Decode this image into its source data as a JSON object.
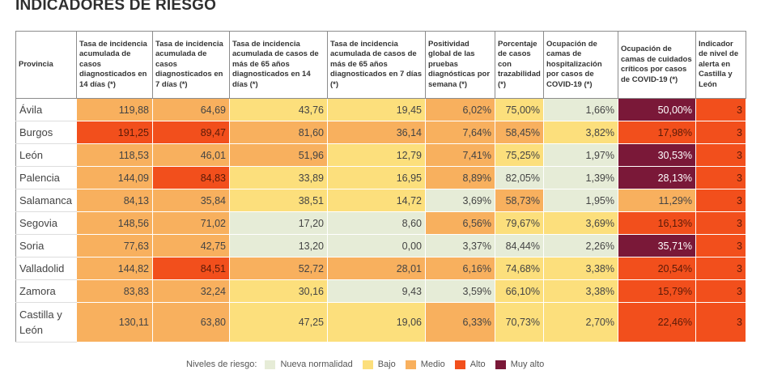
{
  "title": "INDICADORES DE RIESGO",
  "headers": [
    "Provincia",
    "Tasa de incidencia acumulada de casos diagnosticados en 14 días (*)",
    "Tasa de incidencia acumulada de casos diagnosticados en 7 días (*)",
    "Tasa de incidencia acumulada de casos de más de 65 años diagnosticados en 14 días (*)",
    "Tasa de incidencia acumulada de casos de más de 65 años diagnosticados en 7 días (*)",
    "Positividad global de las pruebas diagnósticas por semana (*)",
    "Porcentaje de casos con trazabilidad (*)",
    "Ocupación de camas de hospitalización por casos de COVID-19 (*)",
    "Ocupación de camas de cuidados críticos por casos de COVID-19 (*)",
    "Indicador de nivel de alerta en Castilla y León"
  ],
  "rows": [
    {
      "provincia": "Ávila",
      "cells": [
        {
          "v": "119,88",
          "l": "medio"
        },
        {
          "v": "64,69",
          "l": "medio"
        },
        {
          "v": "43,76",
          "l": "bajo"
        },
        {
          "v": "19,45",
          "l": "bajo"
        },
        {
          "v": "6,02%",
          "l": "medio"
        },
        {
          "v": "75,00%",
          "l": "bajo"
        },
        {
          "v": "1,66%",
          "l": "normal"
        },
        {
          "v": "50,00%",
          "l": "muyalto"
        },
        {
          "v": "3",
          "l": "alto"
        }
      ]
    },
    {
      "provincia": "Burgos",
      "cells": [
        {
          "v": "191,25",
          "l": "alto"
        },
        {
          "v": "89,47",
          "l": "alto"
        },
        {
          "v": "81,60",
          "l": "medio"
        },
        {
          "v": "36,14",
          "l": "medio"
        },
        {
          "v": "7,64%",
          "l": "medio"
        },
        {
          "v": "58,45%",
          "l": "medio"
        },
        {
          "v": "3,82%",
          "l": "bajo"
        },
        {
          "v": "17,98%",
          "l": "alto"
        },
        {
          "v": "3",
          "l": "alto"
        }
      ]
    },
    {
      "provincia": "León",
      "cells": [
        {
          "v": "118,53",
          "l": "medio"
        },
        {
          "v": "46,01",
          "l": "medio"
        },
        {
          "v": "51,96",
          "l": "medio"
        },
        {
          "v": "12,79",
          "l": "bajo"
        },
        {
          "v": "7,41%",
          "l": "medio"
        },
        {
          "v": "75,25%",
          "l": "bajo"
        },
        {
          "v": "1,97%",
          "l": "normal"
        },
        {
          "v": "30,53%",
          "l": "muyalto"
        },
        {
          "v": "3",
          "l": "alto"
        }
      ]
    },
    {
      "provincia": "Palencia",
      "cells": [
        {
          "v": "144,09",
          "l": "medio"
        },
        {
          "v": "84,83",
          "l": "alto"
        },
        {
          "v": "33,89",
          "l": "bajo"
        },
        {
          "v": "16,95",
          "l": "bajo"
        },
        {
          "v": "8,89%",
          "l": "medio"
        },
        {
          "v": "82,05%",
          "l": "normal"
        },
        {
          "v": "1,39%",
          "l": "normal"
        },
        {
          "v": "28,13%",
          "l": "muyalto"
        },
        {
          "v": "3",
          "l": "alto"
        }
      ]
    },
    {
      "provincia": "Salamanca",
      "cells": [
        {
          "v": "84,13",
          "l": "medio"
        },
        {
          "v": "35,84",
          "l": "medio"
        },
        {
          "v": "38,51",
          "l": "bajo"
        },
        {
          "v": "14,72",
          "l": "bajo"
        },
        {
          "v": "3,69%",
          "l": "normal"
        },
        {
          "v": "58,73%",
          "l": "medio"
        },
        {
          "v": "1,95%",
          "l": "normal"
        },
        {
          "v": "11,29%",
          "l": "medio"
        },
        {
          "v": "3",
          "l": "alto"
        }
      ]
    },
    {
      "provincia": "Segovia",
      "cells": [
        {
          "v": "148,56",
          "l": "medio"
        },
        {
          "v": "71,02",
          "l": "medio"
        },
        {
          "v": "17,20",
          "l": "normal"
        },
        {
          "v": "8,60",
          "l": "normal"
        },
        {
          "v": "6,56%",
          "l": "medio"
        },
        {
          "v": "79,67%",
          "l": "bajo"
        },
        {
          "v": "3,69%",
          "l": "bajo"
        },
        {
          "v": "16,13%",
          "l": "alto"
        },
        {
          "v": "3",
          "l": "alto"
        }
      ]
    },
    {
      "provincia": "Soria",
      "cells": [
        {
          "v": "77,63",
          "l": "medio"
        },
        {
          "v": "42,75",
          "l": "medio"
        },
        {
          "v": "13,20",
          "l": "normal"
        },
        {
          "v": "0,00",
          "l": "normal"
        },
        {
          "v": "3,37%",
          "l": "normal"
        },
        {
          "v": "84,44%",
          "l": "normal"
        },
        {
          "v": "2,26%",
          "l": "normal"
        },
        {
          "v": "35,71%",
          "l": "muyalto"
        },
        {
          "v": "3",
          "l": "alto"
        }
      ]
    },
    {
      "provincia": "Valladolid",
      "cells": [
        {
          "v": "144,82",
          "l": "medio"
        },
        {
          "v": "84,51",
          "l": "alto"
        },
        {
          "v": "52,72",
          "l": "medio"
        },
        {
          "v": "28,01",
          "l": "medio"
        },
        {
          "v": "6,16%",
          "l": "medio"
        },
        {
          "v": "74,68%",
          "l": "bajo"
        },
        {
          "v": "3,38%",
          "l": "bajo"
        },
        {
          "v": "20,54%",
          "l": "alto"
        },
        {
          "v": "3",
          "l": "alto"
        }
      ]
    },
    {
      "provincia": "Zamora",
      "cells": [
        {
          "v": "83,83",
          "l": "medio"
        },
        {
          "v": "32,24",
          "l": "medio"
        },
        {
          "v": "30,16",
          "l": "bajo"
        },
        {
          "v": "9,43",
          "l": "normal"
        },
        {
          "v": "3,59%",
          "l": "normal"
        },
        {
          "v": "66,10%",
          "l": "bajo"
        },
        {
          "v": "3,38%",
          "l": "bajo"
        },
        {
          "v": "15,79%",
          "l": "alto"
        },
        {
          "v": "3",
          "l": "alto"
        }
      ]
    },
    {
      "provincia": "Castilla y León",
      "cells": [
        {
          "v": "130,11",
          "l": "medio"
        },
        {
          "v": "63,80",
          "l": "medio"
        },
        {
          "v": "47,25",
          "l": "bajo"
        },
        {
          "v": "19,06",
          "l": "bajo"
        },
        {
          "v": "6,33%",
          "l": "medio"
        },
        {
          "v": "70,73%",
          "l": "bajo"
        },
        {
          "v": "2,70%",
          "l": "bajo"
        },
        {
          "v": "22,46%",
          "l": "alto"
        },
        {
          "v": "3",
          "l": "alto"
        }
      ]
    }
  ],
  "legend": {
    "label": "Niveles de riesgo:",
    "items": [
      {
        "key": "normal",
        "text": "Nueva normalidad",
        "color": "#e6ecd7"
      },
      {
        "key": "bajo",
        "text": "Bajo",
        "color": "#fcdf7c"
      },
      {
        "key": "medio",
        "text": "Medio",
        "color": "#f8b05e"
      },
      {
        "key": "alto",
        "text": "Alto",
        "color": "#f24f1c"
      },
      {
        "key": "muyalto",
        "text": "Muy alto",
        "color": "#7a1838"
      }
    ]
  }
}
